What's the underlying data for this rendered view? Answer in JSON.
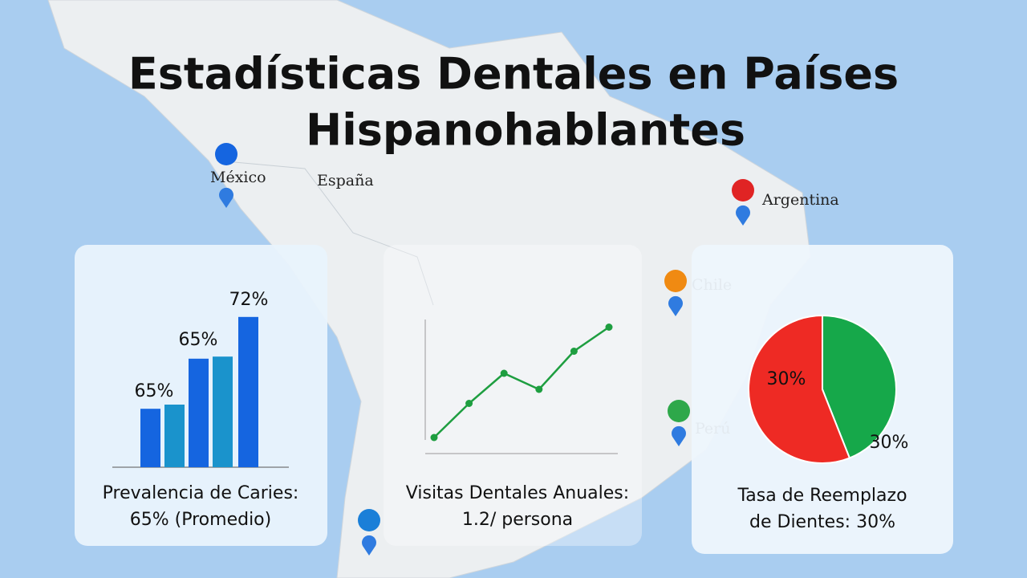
{
  "title": "Estadísticas Dentales en Países Hispanohablantes",
  "places": [
    "México",
    "España",
    "Argentina",
    "Chile",
    "Perú"
  ],
  "captions": [
    [
      "Prevalencia de Caries:",
      "65% (Promedio)"
    ],
    [
      "Visitas Dentales Anuales:",
      "1.2/ persona"
    ],
    [
      "Tasa de Reemplazo",
      "de Dientes: 30%"
    ]
  ],
  "chart_data": [
    {
      "type": "bar",
      "values": [
        28,
        30,
        52,
        53,
        72
      ],
      "colors": [
        "#1565e0",
        "#1a93cc",
        "#1565e0",
        "#1a93cc",
        "#1565e0"
      ],
      "ylim": [
        0,
        75
      ],
      "annotations": [
        "65%",
        "65%",
        "72%"
      ]
    },
    {
      "type": "line",
      "values": [
        0.2,
        1.9,
        3.4,
        2.6,
        4.5,
        5.7
      ],
      "color": "#1e9e40",
      "ylim": [
        0,
        6
      ]
    },
    {
      "type": "pie",
      "values": [
        44,
        56
      ],
      "colors": [
        "#16a84a",
        "#ee2a24"
      ],
      "annotations": [
        "30%",
        "30%"
      ]
    }
  ]
}
